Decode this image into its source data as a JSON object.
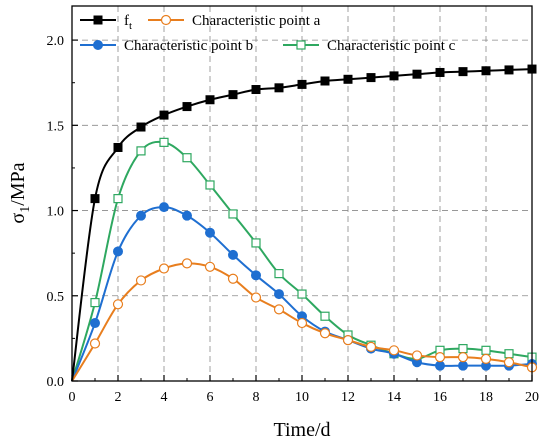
{
  "chart_data": {
    "type": "line",
    "title": "",
    "xlabel": "Time/d",
    "ylabel_main": "σ",
    "ylabel_sub": "1",
    "ylabel_rest": "/MPa",
    "xlim": [
      0,
      20
    ],
    "ylim": [
      0,
      2.2
    ],
    "x_ticks": [
      0,
      2,
      4,
      6,
      8,
      10,
      12,
      14,
      16,
      18,
      20
    ],
    "y_ticks": [
      0.0,
      0.5,
      1.0,
      1.5,
      2.0
    ],
    "y_tick_labels": [
      "0.0",
      "0.5",
      "1.0",
      "1.5",
      "2.0"
    ],
    "grid": true,
    "legend_placement": "top",
    "x": [
      0,
      1,
      2,
      3,
      4,
      5,
      6,
      7,
      8,
      9,
      10,
      11,
      12,
      13,
      14,
      15,
      16,
      17,
      18,
      19,
      20
    ],
    "series": [
      {
        "name": "f",
        "name_sub": "t",
        "color": "#000000",
        "marker": "square-filled",
        "values": [
          0,
          1.07,
          1.37,
          1.49,
          1.56,
          1.61,
          1.65,
          1.68,
          1.71,
          1.72,
          1.74,
          1.76,
          1.77,
          1.78,
          1.79,
          1.8,
          1.81,
          1.815,
          1.82,
          1.825,
          1.83
        ]
      },
      {
        "name": "Characteristic point a",
        "color": "#e87e1e",
        "marker": "circle-open",
        "values": [
          0,
          0.22,
          0.45,
          0.59,
          0.66,
          0.69,
          0.67,
          0.6,
          0.49,
          0.42,
          0.34,
          0.28,
          0.24,
          0.2,
          0.18,
          0.15,
          0.14,
          0.14,
          0.13,
          0.11,
          0.08
        ]
      },
      {
        "name": "Characteristic point b",
        "color": "#1f6fd1",
        "marker": "circle-filled",
        "values": [
          0,
          0.34,
          0.76,
          0.97,
          1.02,
          0.97,
          0.87,
          0.74,
          0.62,
          0.51,
          0.38,
          0.29,
          0.24,
          0.19,
          0.16,
          0.11,
          0.09,
          0.09,
          0.09,
          0.09,
          0.1
        ]
      },
      {
        "name": "Characteristic point c",
        "color": "#2ea860",
        "marker": "square-open",
        "values": [
          0,
          0.46,
          1.07,
          1.35,
          1.4,
          1.31,
          1.15,
          0.98,
          0.81,
          0.63,
          0.51,
          0.38,
          0.27,
          0.21,
          0.16,
          0.13,
          0.18,
          0.19,
          0.18,
          0.16,
          0.14
        ]
      }
    ]
  }
}
